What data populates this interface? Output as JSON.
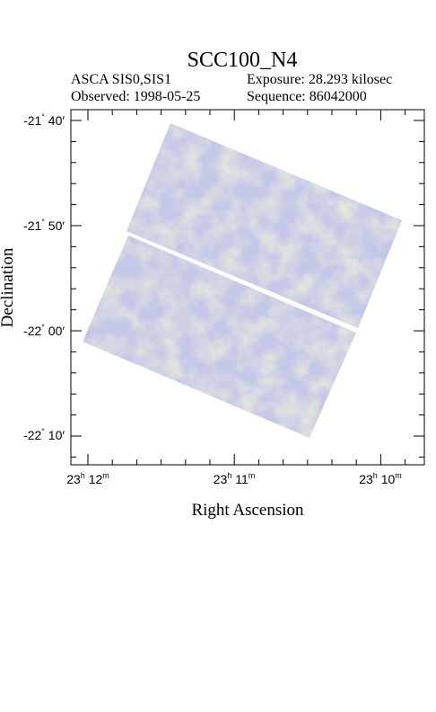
{
  "title": "SCC100_N4",
  "header": {
    "instrument": "ASCA SIS0,SIS1",
    "exposure": "Exposure: 28.293 kilosec",
    "observed": "Observed: 1998-05-25",
    "sequence": "Sequence: 86042000"
  },
  "axes": {
    "ylabel": "Declination",
    "xlabel": "Right Ascension",
    "yticks": [
      {
        "deg": "-21",
        "min": "40",
        "value": "-21° 40′"
      },
      {
        "deg": "-21",
        "min": "50",
        "value": "-21° 50′"
      },
      {
        "deg": "-22",
        "min": "00",
        "value": "-22° 00′"
      },
      {
        "deg": "-22",
        "min": "10",
        "value": "-22° 10′"
      }
    ],
    "xticks": [
      {
        "h": "23",
        "m": "12",
        "value": "23h 12m"
      },
      {
        "h": "23",
        "m": "11",
        "value": "23h 11m"
      },
      {
        "h": "23",
        "m": "10",
        "value": "23h 10m"
      }
    ]
  },
  "image": {
    "colors": {
      "blue": "#c4c8e8",
      "yellow": "#dcdcb4",
      "gray": "#d2d2d2",
      "frame": "#000000"
    }
  }
}
